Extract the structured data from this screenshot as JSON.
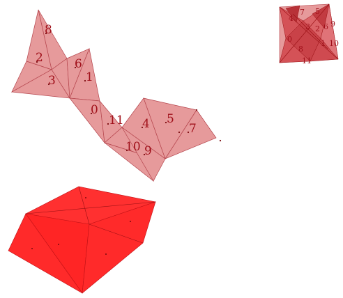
{
  "figure": {
    "unfolded_net": {
      "face_labels": [
        "0",
        "1",
        "2",
        "3",
        "4",
        "5",
        "6",
        "7",
        "8",
        "9",
        "10",
        "11"
      ],
      "fill_color": "#e69a9b",
      "edge_color": "#b5454d"
    },
    "folded_model": {
      "face_labels": [
        "0",
        "1",
        "2",
        "3",
        "4",
        "5",
        "6",
        "7",
        "8",
        "9",
        "10",
        "11"
      ],
      "fill_color": "#d9565c"
    },
    "solid_shape": {
      "fill_color": "#ff2a2a",
      "shade_color": "#e81c1c"
    },
    "label_color": "#a0101a"
  }
}
